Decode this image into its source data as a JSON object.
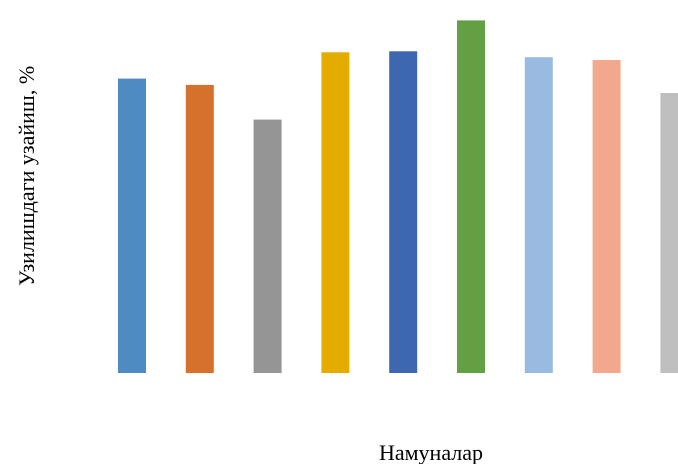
{
  "chart_data": {
    "type": "bar",
    "title": "",
    "xlabel": "Намуналар",
    "ylabel": "Узилишдаги узайиш, %",
    "categories": [
      "",
      "",
      "",
      "",
      "",
      "",
      "",
      "",
      ""
    ],
    "values": [
      84,
      82.2,
      72.3,
      91.5,
      91.8,
      100.6,
      90.1,
      89.3,
      79.9
    ],
    "ylim": [
      0,
      105
    ],
    "colors": [
      "#4e8bc2",
      "#d5712c",
      "#959595",
      "#e5ac00",
      "#3d67b1",
      "#63a043",
      "#99bae1",
      "#f1a88c",
      "#bfbfbf"
    ],
    "grid": false,
    "legend": "none"
  }
}
